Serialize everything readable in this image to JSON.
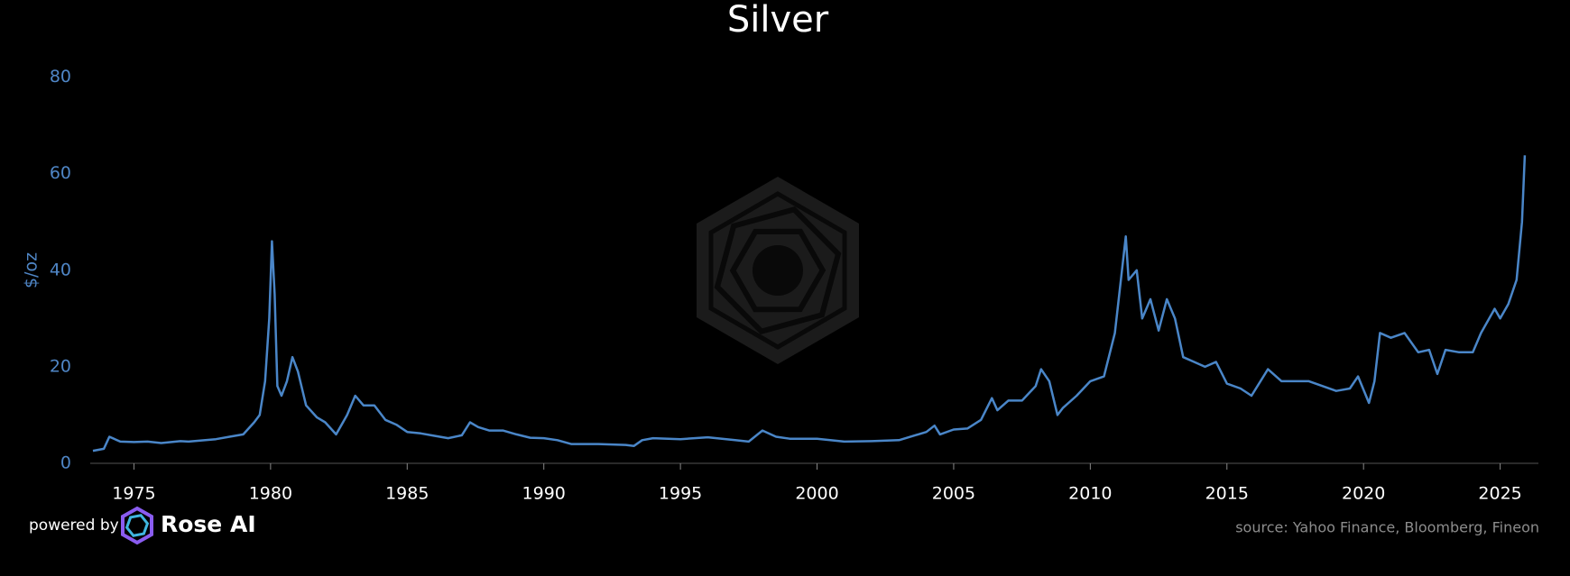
{
  "chart_data": {
    "type": "line",
    "title": "Silver",
    "ylabel": "$/oz",
    "footer": {
      "powered_by": "powered by",
      "brand": "Rose AI",
      "source": "source: Yahoo Finance, Bloomberg, Fineon"
    },
    "xlim": [
      1973.4,
      2026.4
    ],
    "xticks": [
      1975,
      1980,
      1985,
      1990,
      1995,
      2000,
      2005,
      2010,
      2015,
      2020,
      2025
    ],
    "ylim": [
      0,
      80
    ],
    "yticks": [
      0,
      20,
      40,
      60,
      80
    ],
    "x": [
      1973.5,
      1973.9,
      1974.1,
      1974.5,
      1975,
      1975.5,
      1976,
      1976.7,
      1977,
      1978,
      1978.5,
      1979,
      1979.4,
      1979.6,
      1979.8,
      1979.95,
      1980.05,
      1980.15,
      1980.25,
      1980.4,
      1980.6,
      1980.8,
      1981,
      1981.3,
      1981.7,
      1982,
      1982.4,
      1982.8,
      1983.1,
      1983.4,
      1983.8,
      1984.2,
      1984.6,
      1985,
      1985.5,
      1986,
      1986.5,
      1987,
      1987.3,
      1987.6,
      1988,
      1988.5,
      1989,
      1989.5,
      1990,
      1990.5,
      1991,
      1992,
      1993,
      1993.3,
      1993.6,
      1994,
      1995,
      1996,
      1997,
      1997.5,
      1998,
      1998.5,
      1999,
      2000,
      2001,
      2002,
      2003,
      2004,
      2004.3,
      2004.5,
      2005,
      2005.5,
      2006,
      2006.4,
      2006.6,
      2007,
      2007.5,
      2008,
      2008.2,
      2008.5,
      2008.8,
      2009,
      2009.5,
      2010,
      2010.5,
      2010.9,
      2011.3,
      2011.4,
      2011.7,
      2011.9,
      2012.2,
      2012.5,
      2012.8,
      2013.1,
      2013.4,
      2013.8,
      2014.2,
      2014.6,
      2015,
      2015.5,
      2015.9,
      2016.5,
      2017,
      2017.5,
      2018,
      2018.5,
      2019,
      2019.5,
      2019.8,
      2020.2,
      2020.4,
      2020.6,
      2021,
      2021.5,
      2022,
      2022.4,
      2022.7,
      2023,
      2023.5,
      2024,
      2024.3,
      2024.8,
      2025,
      2025.3,
      2025.6,
      2025.8,
      2025.9
    ],
    "series": [
      {
        "name": "Silver",
        "color": "#4a86c8",
        "values": [
          2.6,
          3.0,
          5.5,
          4.5,
          4.4,
          4.5,
          4.2,
          4.6,
          4.5,
          5.0,
          5.5,
          6.0,
          8.5,
          10,
          17,
          30,
          46,
          35,
          16,
          14,
          17,
          22,
          19,
          12,
          9.5,
          8.5,
          6,
          10,
          14,
          12,
          12,
          9,
          8,
          6.5,
          6.2,
          5.7,
          5.2,
          5.8,
          8.5,
          7.5,
          6.8,
          6.8,
          6,
          5.3,
          5.2,
          4.8,
          4.0,
          4.0,
          3.8,
          3.6,
          4.8,
          5.2,
          5.0,
          5.4,
          4.8,
          4.5,
          6.8,
          5.5,
          5.1,
          5.1,
          4.5,
          4.6,
          4.8,
          6.5,
          7.8,
          6.0,
          7.0,
          7.2,
          9,
          13.5,
          11,
          13,
          13,
          16,
          19.5,
          17,
          10,
          11.5,
          14,
          17,
          18,
          27,
          47,
          38,
          40,
          30,
          34,
          27.5,
          34,
          30,
          22,
          21,
          20,
          21,
          16.5,
          15.5,
          14,
          19.5,
          17,
          17,
          17,
          16,
          15,
          15.5,
          18,
          12.5,
          17,
          27,
          26,
          27,
          23,
          23.5,
          18.5,
          23.5,
          23,
          23,
          27,
          32,
          30,
          33,
          38,
          50,
          63.8
        ]
      }
    ]
  }
}
